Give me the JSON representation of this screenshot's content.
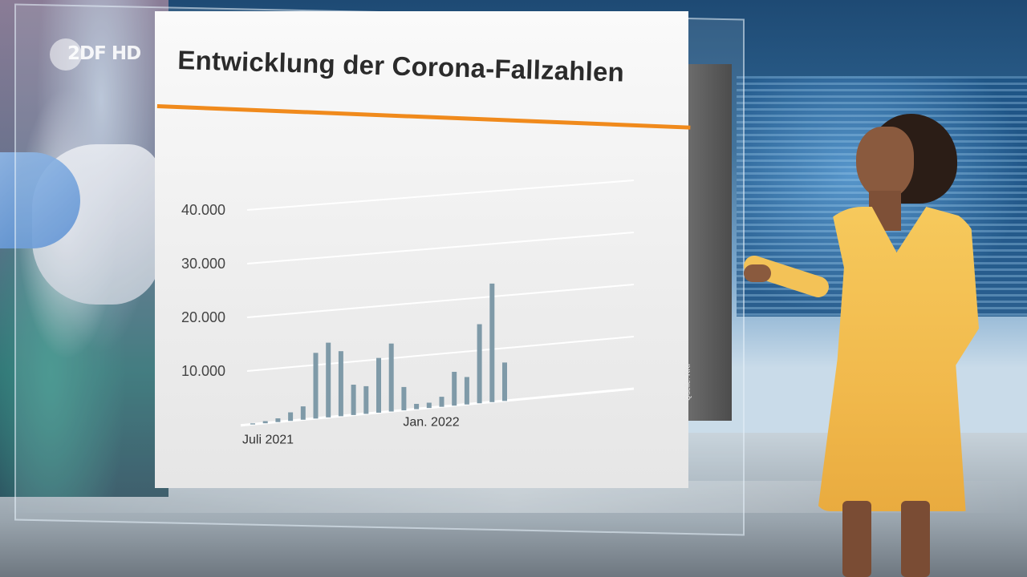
{
  "broadcaster": {
    "logo_text": "2DF HD"
  },
  "slide": {
    "title": "Entwicklung der Corona-Fallzahlen",
    "source": "Quelle: RKI"
  },
  "colors": {
    "accent_rule": "#f08a1c",
    "bar": "#7f9aa8",
    "title_text": "#2b2b2b",
    "axis_text": "#444444",
    "presenter_dress": "#f3c257"
  },
  "chart_data": {
    "type": "bar",
    "title": "Entwicklung der Corona-Fallzahlen",
    "xlabel": "",
    "ylabel": "",
    "ylim": [
      0,
      40000
    ],
    "y_ticks": [
      {
        "value": 10000,
        "label": "10.000"
      },
      {
        "value": 20000,
        "label": "20.000"
      },
      {
        "value": 30000,
        "label": "30.000"
      },
      {
        "value": 40000,
        "label": "40.000"
      }
    ],
    "x_tick_labels": [
      {
        "label": "Juli 2021",
        "index": 0
      },
      {
        "label": "Jan. 2022",
        "index": 15
      }
    ],
    "grid": true,
    "values": [
      200,
      400,
      700,
      1600,
      2500,
      12300,
      14000,
      12200,
      5700,
      5200,
      10300,
      12800,
      4400,
      1000,
      1000,
      1900,
      6400,
      5200,
      15000,
      22500,
      7300
    ]
  },
  "icons": {
    "logo": "zdf-logo-icon"
  }
}
